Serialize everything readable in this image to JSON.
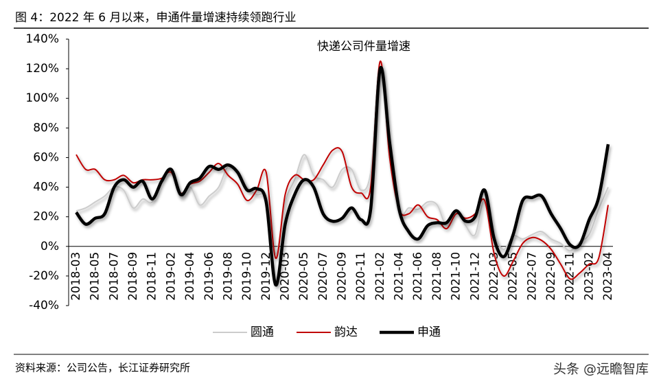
{
  "header": "图 4：2022 年 6 月以来，申通件量增速持续领跑行业",
  "source": "资料来源：公司公告，长江证券研究所",
  "watermark": "头条 @远瞻智库",
  "chart_data": {
    "type": "line",
    "title": "快递公司件量增速",
    "categories": [
      "2018-03",
      null,
      "2018-05",
      null,
      "2018-07",
      null,
      "2018-09",
      null,
      "2018-11",
      null,
      "2019-02",
      null,
      "2019-04",
      null,
      "2019-06",
      null,
      "2019-08",
      null,
      "2019-10",
      null,
      "2019-12",
      null,
      "2020-03",
      null,
      "2020-05",
      null,
      "2020-07",
      null,
      "2020-09",
      null,
      "2020-11",
      null,
      "2021-02",
      null,
      "2021-04",
      null,
      "2021-06",
      null,
      "2021-08",
      null,
      "2021-10",
      null,
      "2021-12",
      null,
      "2022-03",
      null,
      "2022-05",
      null,
      "2022-07",
      null,
      "2022-09",
      null,
      "2022-11",
      null,
      "2023-02",
      null,
      "2023-04"
    ],
    "series": [
      {
        "name": "圆通",
        "color": "#cccccc",
        "width": 2,
        "values": [
          24,
          26,
          30,
          34,
          40,
          38,
          26,
          32,
          30,
          46,
          50,
          33,
          40,
          28,
          34,
          40,
          54,
          50,
          40,
          35,
          32,
          -5,
          30,
          45,
          62,
          48,
          45,
          40,
          52,
          52,
          38,
          50,
          118,
          60,
          22,
          26,
          25,
          30,
          28,
          14,
          25,
          14,
          8,
          32,
          8,
          -2,
          7,
          5,
          8,
          10,
          5,
          2,
          -3,
          3,
          8,
          25,
          40
        ]
      },
      {
        "name": "韵达",
        "color": "#c00000",
        "width": 2,
        "values": [
          62,
          52,
          52,
          45,
          45,
          48,
          43,
          45,
          45,
          46,
          50,
          36,
          42,
          44,
          50,
          56,
          48,
          42,
          31,
          38,
          50,
          -8,
          35,
          48,
          45,
          45,
          55,
          65,
          64,
          40,
          36,
          40,
          125,
          60,
          25,
          22,
          28,
          20,
          18,
          12,
          22,
          19,
          22,
          31,
          -5,
          -20,
          -10,
          2,
          6,
          4,
          -2,
          -12,
          -22,
          -18,
          -12,
          -8,
          28
        ]
      },
      {
        "name": "申通",
        "color": "#000000",
        "width": 4.5,
        "values": [
          23,
          15,
          19,
          22,
          40,
          45,
          40,
          44,
          32,
          44,
          52,
          35,
          43,
          46,
          54,
          52,
          55,
          50,
          38,
          39,
          30,
          -26,
          15,
          35,
          45,
          40,
          22,
          17,
          19,
          26,
          18,
          25,
          120,
          70,
          25,
          10,
          5,
          14,
          16,
          16,
          24,
          17,
          20,
          38,
          5,
          -7,
          8,
          31,
          33,
          34,
          22,
          12,
          1,
          1,
          18,
          33,
          69
        ]
      }
    ],
    "ylim": [
      -40,
      140
    ],
    "yticks": [
      {
        "value": -40,
        "label": "-40%"
      },
      {
        "value": -20,
        "label": "-20%"
      },
      {
        "value": 0,
        "label": "0%"
      },
      {
        "value": 20,
        "label": "20%"
      },
      {
        "value": 40,
        "label": "40%"
      },
      {
        "value": 60,
        "label": "60%"
      },
      {
        "value": 80,
        "label": "80%"
      },
      {
        "value": 100,
        "label": "100%"
      },
      {
        "value": 120,
        "label": "120%"
      },
      {
        "value": 140,
        "label": "140%"
      }
    ],
    "smooth": true
  }
}
